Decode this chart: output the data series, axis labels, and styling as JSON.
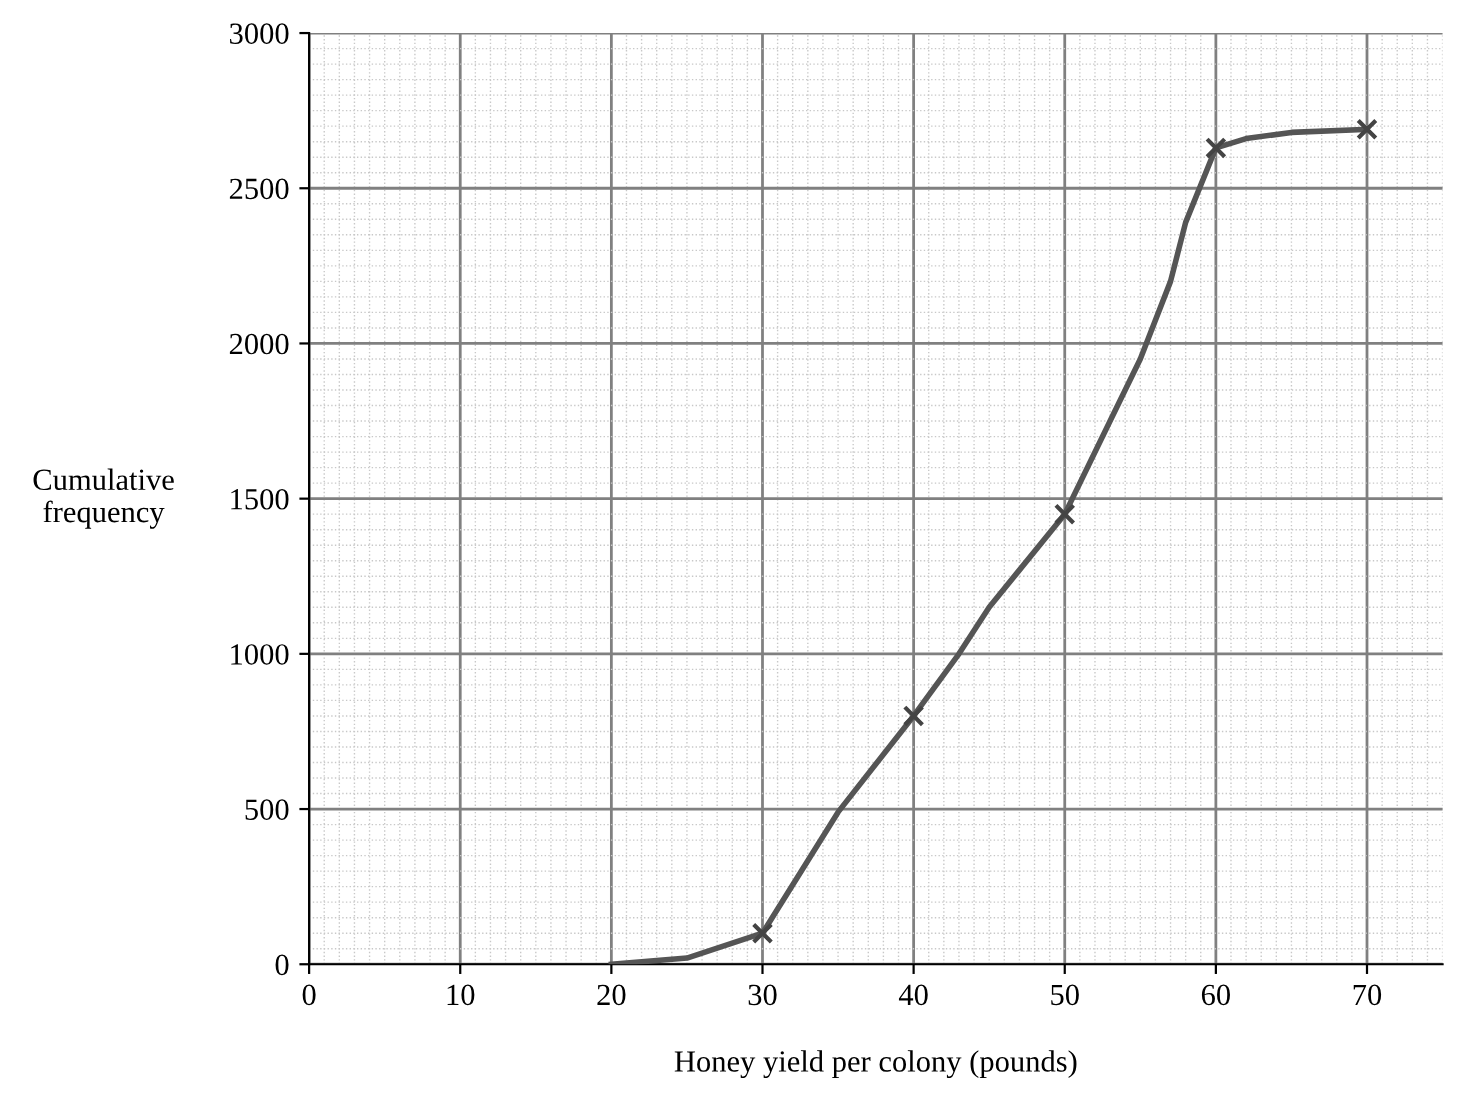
{
  "chart_data": {
    "type": "line",
    "xlabel": "Honey yield per colony (pounds)",
    "ylabel": "Cumulative\nfrequency",
    "xlim": [
      0,
      75
    ],
    "ylim": [
      0,
      3000
    ],
    "xticks": [
      0,
      10,
      20,
      30,
      40,
      50,
      60,
      70
    ],
    "yticks": [
      0,
      500,
      1000,
      1500,
      2000,
      2500,
      3000
    ],
    "grid": true,
    "series": [
      {
        "color": "#555555",
        "marker": "none",
        "x": [
          20,
          25,
          30,
          35,
          40,
          43,
          45,
          50,
          53,
          55,
          57,
          58,
          60,
          62,
          65,
          70
        ],
        "values": [
          0,
          20,
          100,
          490,
          800,
          1000,
          1150,
          1450,
          1750,
          1950,
          2200,
          2390,
          2630,
          2660,
          2680,
          2690
        ]
      },
      {
        "type": "scatter",
        "color": "#444444",
        "marker": "cross",
        "x": [
          30,
          40,
          50,
          60,
          70
        ],
        "values": [
          100,
          800,
          1450,
          2630,
          2690
        ]
      }
    ]
  }
}
